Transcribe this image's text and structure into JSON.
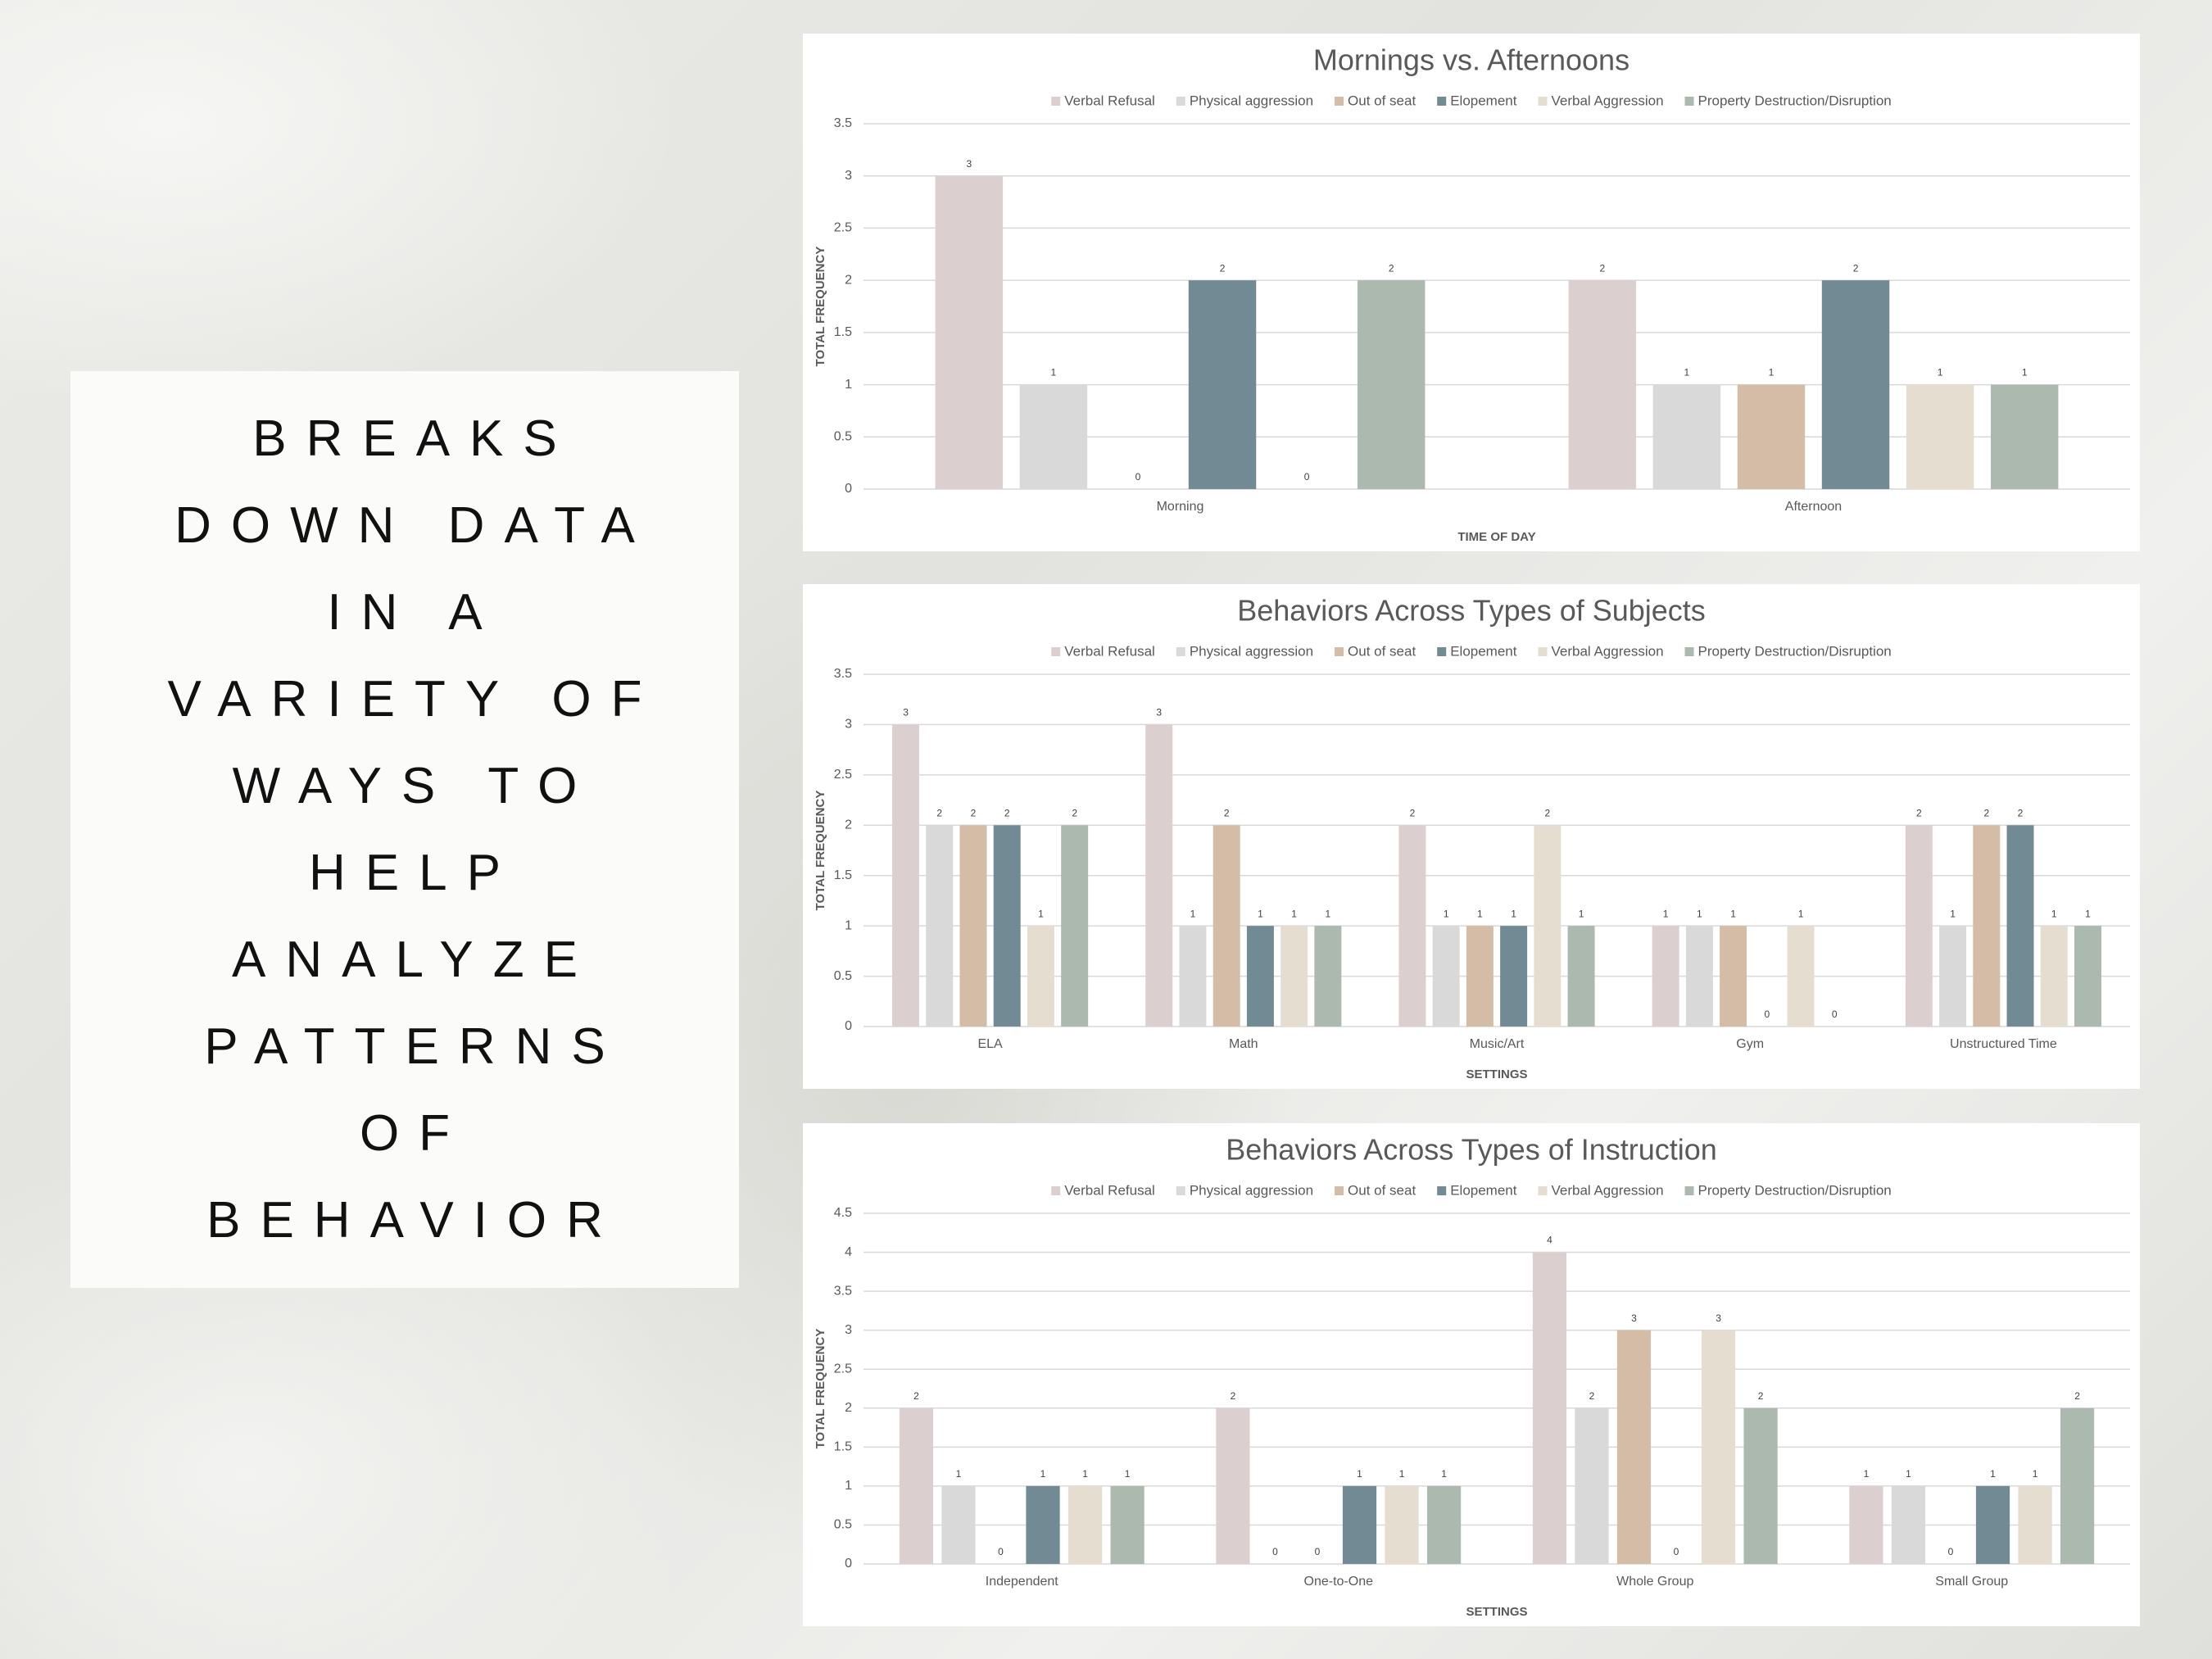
{
  "panel": {
    "lines": [
      "BREAKS",
      "DOWN DATA",
      "IN A",
      "VARIETY OF",
      "WAYS TO",
      "HELP",
      "ANALYZE",
      "PATTERNS",
      "OF",
      "BEHAVIOR"
    ]
  },
  "chart_data": [
    {
      "type": "bar",
      "title": "Mornings vs. Afternoons",
      "xlabel": "TIME OF DAY",
      "ylabel": "TOTAL FREQUENCY",
      "categories": [
        "Morning",
        "Afternoon"
      ],
      "legend": "top",
      "grid": true,
      "ylim": [
        0,
        3.5
      ],
      "yticks": [
        0,
        0.5,
        1,
        1.5,
        2,
        2.5,
        3,
        3.5
      ],
      "series": [
        {
          "name": "Verbal Refusal",
          "color": "#dccfcf",
          "values": [
            3,
            2
          ]
        },
        {
          "name": "Physical aggression",
          "color": "#d9d9d9",
          "values": [
            1,
            1
          ]
        },
        {
          "name": "Out of seat",
          "color": "#d4bca6",
          "values": [
            0,
            1
          ]
        },
        {
          "name": "Elopement",
          "color": "#718a94",
          "values": [
            2,
            2
          ]
        },
        {
          "name": "Verbal Aggression",
          "color": "#e5ded0",
          "values": [
            0,
            1
          ]
        },
        {
          "name": "Property Destruction/Disruption",
          "color": "#abb9ae",
          "values": [
            2,
            1
          ]
        }
      ]
    },
    {
      "type": "bar",
      "title": "Behaviors Across Types of Subjects",
      "xlabel": "SETTINGS",
      "ylabel": "TOTAL FREQUENCY",
      "categories": [
        "ELA",
        "Math",
        "Music/Art",
        "Gym",
        "Unstructured Time"
      ],
      "legend": "top",
      "grid": true,
      "ylim": [
        0,
        3.5
      ],
      "yticks": [
        0,
        0.5,
        1,
        1.5,
        2,
        2.5,
        3,
        3.5
      ],
      "series": [
        {
          "name": "Verbal Refusal",
          "color": "#dccfcf",
          "values": [
            3,
            3,
            2,
            1,
            2
          ]
        },
        {
          "name": "Physical aggression",
          "color": "#d9d9d9",
          "values": [
            2,
            1,
            1,
            1,
            1
          ]
        },
        {
          "name": "Out of seat",
          "color": "#d4bca6",
          "values": [
            2,
            2,
            1,
            1,
            2
          ]
        },
        {
          "name": "Elopement",
          "color": "#718a94",
          "values": [
            2,
            1,
            1,
            0,
            2
          ]
        },
        {
          "name": "Verbal Aggression",
          "color": "#e5ded0",
          "values": [
            1,
            1,
            2,
            1,
            1
          ]
        },
        {
          "name": "Property Destruction/Disruption",
          "color": "#abb9ae",
          "values": [
            2,
            1,
            1,
            0,
            1
          ]
        }
      ]
    },
    {
      "type": "bar",
      "title": "Behaviors Across Types of Instruction",
      "xlabel": "SETTINGS",
      "ylabel": "TOTAL FREQUENCY",
      "categories": [
        "Independent",
        "One-to-One",
        "Whole Group",
        "Small Group"
      ],
      "legend": "top",
      "grid": true,
      "ylim": [
        0,
        4.5
      ],
      "yticks": [
        0,
        0.5,
        1,
        1.5,
        2,
        2.5,
        3,
        3.5,
        4,
        4.5
      ],
      "series": [
        {
          "name": "Verbal Refusal",
          "color": "#dccfcf",
          "values": [
            2,
            2,
            4,
            1
          ]
        },
        {
          "name": "Physical aggression",
          "color": "#d9d9d9",
          "values": [
            1,
            0,
            2,
            1
          ]
        },
        {
          "name": "Out of seat",
          "color": "#d4bca6",
          "values": [
            0,
            0,
            3,
            0
          ]
        },
        {
          "name": "Elopement",
          "color": "#718a94",
          "values": [
            1,
            1,
            0,
            1
          ]
        },
        {
          "name": "Verbal Aggression",
          "color": "#e5ded0",
          "values": [
            1,
            1,
            3,
            1
          ]
        },
        {
          "name": "Property Destruction/Disruption",
          "color": "#abb9ae",
          "values": [
            1,
            1,
            2,
            2
          ]
        }
      ]
    }
  ]
}
